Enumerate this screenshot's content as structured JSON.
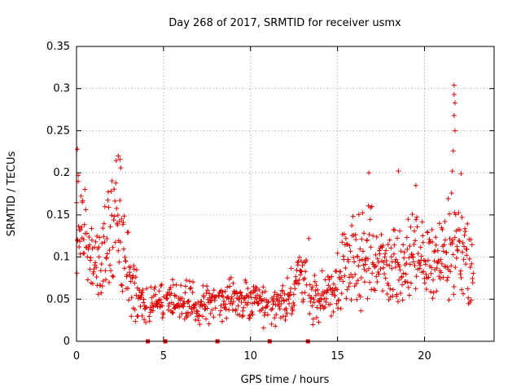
{
  "chart_data": {
    "type": "scatter",
    "title": "Day 268 of 2017, SRMTID for receiver usmx",
    "xlabel": "GPS time / hours",
    "ylabel": "SRMTID / TECUs",
    "xlim": [
      0,
      24
    ],
    "ylim": [
      0,
      0.35
    ],
    "xticks": [
      0,
      5,
      10,
      15,
      20
    ],
    "yticks": [
      0,
      0.05,
      0.1,
      0.15,
      0.2,
      0.25,
      0.3,
      0.35
    ],
    "xtick_labels": [
      "0",
      "5",
      "10",
      "15",
      "20"
    ],
    "ytick_labels": [
      "0",
      "0.05",
      "0.1",
      "0.15",
      "0.2",
      "0.25",
      "0.3",
      "0.35"
    ],
    "grid": true,
    "marker": "plus",
    "series_color": "#e00000",
    "data_gap_markers_x": [
      4.1,
      5.1,
      8.1,
      11.1,
      13.3
    ],
    "trend_points": [
      [
        0.0,
        0.14
      ],
      [
        0.5,
        0.11
      ],
      [
        1.0,
        0.095
      ],
      [
        1.5,
        0.11
      ],
      [
        2.0,
        0.13
      ],
      [
        2.5,
        0.15
      ],
      [
        2.8,
        0.1
      ],
      [
        3.2,
        0.065
      ],
      [
        3.6,
        0.05
      ],
      [
        4.0,
        0.045
      ],
      [
        5.0,
        0.045
      ],
      [
        6.0,
        0.045
      ],
      [
        7.0,
        0.045
      ],
      [
        8.0,
        0.045
      ],
      [
        9.0,
        0.05
      ],
      [
        10.0,
        0.045
      ],
      [
        11.0,
        0.04
      ],
      [
        12.0,
        0.045
      ],
      [
        12.8,
        0.07
      ],
      [
        13.2,
        0.09
      ],
      [
        13.4,
        0.05
      ],
      [
        14.0,
        0.05
      ],
      [
        15.0,
        0.07
      ],
      [
        16.0,
        0.1
      ],
      [
        17.0,
        0.1
      ],
      [
        18.0,
        0.085
      ],
      [
        19.0,
        0.095
      ],
      [
        20.0,
        0.095
      ],
      [
        21.0,
        0.1
      ],
      [
        22.0,
        0.12
      ],
      [
        22.8,
        0.08
      ]
    ],
    "spikes": [
      [
        0.05,
        0.228
      ],
      [
        0.1,
        0.197
      ],
      [
        2.4,
        0.22
      ],
      [
        2.5,
        0.216
      ],
      [
        16.8,
        0.2
      ],
      [
        18.5,
        0.202
      ],
      [
        19.5,
        0.185
      ],
      [
        21.7,
        0.304
      ],
      [
        21.7,
        0.293
      ],
      [
        21.75,
        0.283
      ],
      [
        21.7,
        0.268
      ],
      [
        21.75,
        0.25
      ],
      [
        21.65,
        0.226
      ],
      [
        21.6,
        0.202
      ],
      [
        22.1,
        0.199
      ],
      [
        13.35,
        0.122
      ]
    ]
  }
}
